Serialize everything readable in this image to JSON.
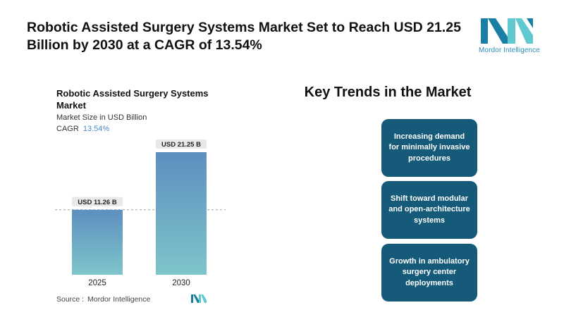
{
  "headline": "Robotic Assisted Surgery Systems Market Set to Reach USD 21.25 Billion by 2030 at a CAGR of 13.54%",
  "brand": {
    "name": "Mordor Intelligence",
    "colors": {
      "dark": "#1a7fa3",
      "light": "#5fc9cf",
      "text": "#2a8fb8"
    }
  },
  "chart_panel": {
    "title": "Robotic Assisted Surgery Systems Market",
    "subtitle": "Market Size in USD Billion",
    "cagr_label": "CAGR",
    "cagr_value": "13.54%",
    "source_label": "Source :",
    "source_name": "Mordor Intelligence"
  },
  "chart_data": {
    "type": "bar",
    "categories": [
      "2025",
      "2030"
    ],
    "values": [
      11.26,
      21.25
    ],
    "data_labels": [
      "USD 11.26 B",
      "USD 21.25 B"
    ],
    "title": "Robotic Assisted Surgery Systems Market",
    "ylabel": "Market Size in USD Billion",
    "ylim": [
      0,
      21.25
    ],
    "grid": false,
    "reference_line": {
      "value": 11.26,
      "style": "dashed"
    },
    "colors": {
      "bar_top": "#5e8fbf",
      "bar_bottom": "#7ec5cb",
      "label_bg": "#e8e8e8"
    }
  },
  "trends": {
    "title": "Key Trends in the Market",
    "items": [
      "Increasing demand for minimally invasive procedures",
      "Shift toward modular and open-architecture systems",
      "Growth in ambulatory surgery center deployments"
    ],
    "card_color": "#155a78"
  }
}
